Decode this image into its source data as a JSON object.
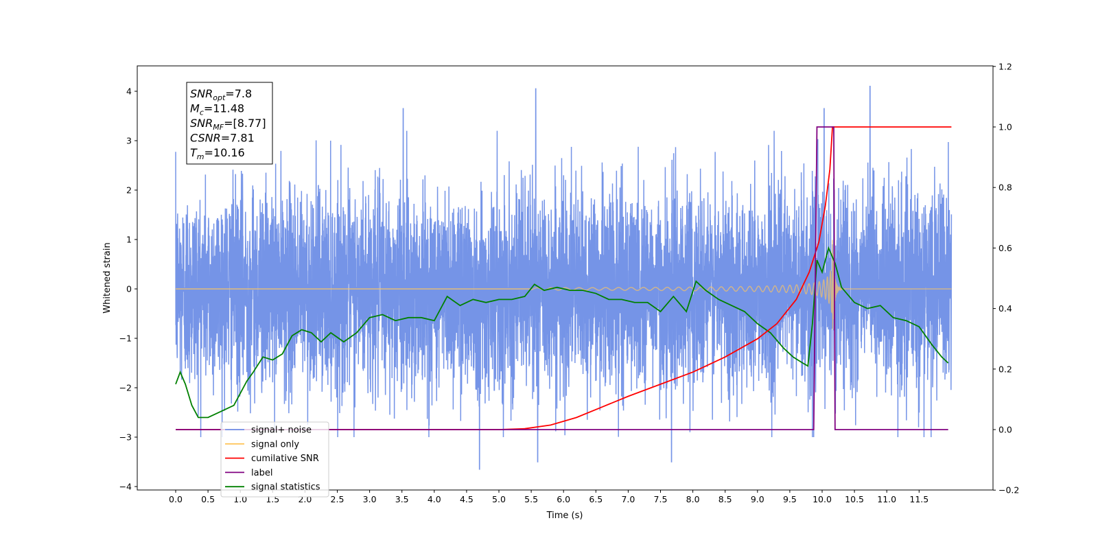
{
  "chart_data": {
    "type": "line",
    "xlabel": "Time (s)",
    "ylabel_left": "Whitened strain",
    "ylabel_right": "",
    "xlim": [
      -0.6,
      12.4
    ],
    "ylim_left": [
      -4.1,
      4.5
    ],
    "ylim_right": [
      -0.2,
      1.2
    ],
    "x_ticks": [
      "0.0",
      "0.5",
      "1.0",
      "1.5",
      "2.0",
      "2.5",
      "3.0",
      "3.5",
      "4.0",
      "4.5",
      "5.0",
      "5.5",
      "6.0",
      "6.5",
      "7.0",
      "7.5",
      "8.0",
      "8.5",
      "9.0",
      "9.5",
      "10.0",
      "10.5",
      "11.0",
      "11.5"
    ],
    "y_left_ticks": [
      "4",
      "3",
      "2",
      "1",
      "0",
      "−1",
      "−2",
      "−3",
      "−4"
    ],
    "y_right_ticks": [
      "1.2",
      "1.0",
      "0.8",
      "0.6",
      "0.4",
      "0.2",
      "0.0",
      "−0.2"
    ],
    "annotation": [
      {
        "base": "SNR",
        "sub": "opt",
        "value": "=7.8"
      },
      {
        "base": "M",
        "sub": "c",
        "value": "=11.48"
      },
      {
        "base": "SNR",
        "sub": "MF",
        "value": "=[8.77]"
      },
      {
        "base": "CSNR",
        "sub": "",
        "value": "=7.81"
      },
      {
        "base": "T",
        "sub": "m",
        "value": "=10.16"
      }
    ],
    "legend": {
      "placement": "lower-left",
      "entries": [
        {
          "label": "signal+ noise",
          "color": "#6e8ee6"
        },
        {
          "label": "signal only",
          "color": "#ffc55c"
        },
        {
          "label": "cumilative SNR",
          "color": "#ff0000"
        },
        {
          "label": "label",
          "color": "#800080"
        },
        {
          "label": "signal statistics",
          "color": "#008000"
        }
      ]
    },
    "series": [
      {
        "name": "signal+ noise",
        "axis": "left",
        "color": "#6e8ee6",
        "description_range": [
          0.0,
          12.0
        ],
        "noise_std": 1.0,
        "notable_peaks": [
          [
            5.57,
            4.05
          ],
          [
            10.74,
            4.1
          ],
          [
            4.7,
            -3.65
          ],
          [
            5.6,
            -3.5
          ],
          [
            7.67,
            -3.5
          ],
          [
            3.52,
            3.65
          ],
          [
            10.03,
            3.65
          ]
        ]
      },
      {
        "name": "signal only",
        "axis": "left",
        "color": "#ffc55c",
        "merger_time": 10.16,
        "peak_amplitude": 1.0
      },
      {
        "name": "cumilative SNR",
        "axis": "right",
        "color": "#ff0000",
        "x": [
          0.0,
          5.0,
          5.4,
          5.8,
          6.2,
          6.6,
          7.0,
          7.5,
          8.0,
          8.5,
          9.0,
          9.3,
          9.6,
          9.8,
          9.95,
          10.05,
          10.12,
          10.16,
          12.0
        ],
        "values": [
          0.0,
          0.0,
          0.003,
          0.015,
          0.04,
          0.075,
          0.11,
          0.15,
          0.19,
          0.24,
          0.3,
          0.35,
          0.43,
          0.52,
          0.62,
          0.74,
          0.86,
          1.0,
          1.0
        ]
      },
      {
        "name": "label",
        "axis": "right",
        "color": "#800080",
        "x": [
          0.0,
          9.87,
          9.92,
          10.18,
          10.2,
          11.95
        ],
        "values": [
          0.0,
          0.0,
          1.0,
          1.0,
          0.0,
          0.0
        ]
      },
      {
        "name": "signal statistics",
        "axis": "right",
        "color": "#008000",
        "x": [
          0.0,
          0.07,
          0.15,
          0.25,
          0.35,
          0.5,
          0.7,
          0.9,
          1.0,
          1.1,
          1.2,
          1.35,
          1.5,
          1.65,
          1.8,
          1.95,
          2.1,
          2.25,
          2.4,
          2.6,
          2.8,
          3.0,
          3.2,
          3.4,
          3.6,
          3.8,
          4.0,
          4.2,
          4.4,
          4.6,
          4.8,
          5.0,
          5.2,
          5.4,
          5.55,
          5.7,
          5.9,
          6.1,
          6.3,
          6.5,
          6.7,
          6.9,
          7.1,
          7.3,
          7.5,
          7.7,
          7.9,
          8.05,
          8.2,
          8.4,
          8.6,
          8.8,
          9.0,
          9.2,
          9.4,
          9.55,
          9.7,
          9.78,
          9.85,
          9.92,
          10.0,
          10.1,
          10.2,
          10.3,
          10.5,
          10.7,
          10.9,
          11.1,
          11.3,
          11.5,
          11.7,
          11.85,
          11.95
        ],
        "values": [
          0.15,
          0.19,
          0.15,
          0.08,
          0.04,
          0.04,
          0.06,
          0.08,
          0.12,
          0.16,
          0.19,
          0.24,
          0.23,
          0.25,
          0.31,
          0.33,
          0.32,
          0.29,
          0.32,
          0.29,
          0.32,
          0.37,
          0.38,
          0.36,
          0.37,
          0.37,
          0.36,
          0.44,
          0.41,
          0.43,
          0.42,
          0.43,
          0.43,
          0.44,
          0.48,
          0.46,
          0.47,
          0.46,
          0.46,
          0.45,
          0.43,
          0.43,
          0.42,
          0.42,
          0.39,
          0.44,
          0.39,
          0.49,
          0.46,
          0.43,
          0.41,
          0.39,
          0.35,
          0.32,
          0.27,
          0.24,
          0.22,
          0.21,
          0.35,
          0.56,
          0.52,
          0.6,
          0.55,
          0.47,
          0.42,
          0.4,
          0.41,
          0.37,
          0.36,
          0.34,
          0.28,
          0.24,
          0.22
        ]
      }
    ]
  }
}
